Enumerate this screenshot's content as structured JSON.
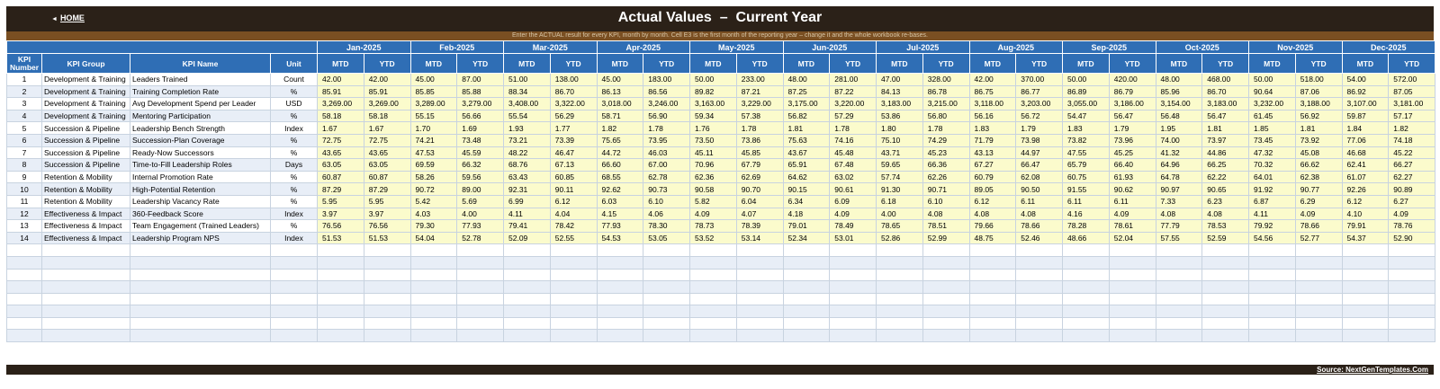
{
  "nav": {
    "home_arrow": "◄",
    "home_label": "HOME"
  },
  "title": "Actual Values  –  Current Year",
  "instruction": "Enter the ACTUAL result for every KPI, month by month. Cell E3 is the first month of the reporting year – change it and the whole workbook re-bases.",
  "table": {
    "headers": {
      "kpi_number": "KPI Number",
      "kpi_group": "KPI Group",
      "kpi_name": "KPI Name",
      "unit": "Unit",
      "mtd": "MTD",
      "ytd": "YTD"
    },
    "months": [
      "Jan-2025",
      "Feb-2025",
      "Mar-2025",
      "Apr-2025",
      "May-2025",
      "Jun-2025",
      "Jul-2025",
      "Aug-2025",
      "Sep-2025",
      "Oct-2025",
      "Nov-2025",
      "Dec-2025"
    ],
    "rows": [
      {
        "num": "1",
        "group": "Development & Training",
        "name": "Leaders Trained",
        "unit": "Count",
        "values": [
          "42.00",
          "42.00",
          "45.00",
          "87.00",
          "51.00",
          "138.00",
          "45.00",
          "183.00",
          "50.00",
          "233.00",
          "48.00",
          "281.00",
          "47.00",
          "328.00",
          "42.00",
          "370.00",
          "50.00",
          "420.00",
          "48.00",
          "468.00",
          "50.00",
          "518.00",
          "54.00",
          "572.00"
        ]
      },
      {
        "num": "2",
        "group": "Development & Training",
        "name": "Training Completion Rate",
        "unit": "%",
        "values": [
          "85.91",
          "85.91",
          "85.85",
          "85.88",
          "88.34",
          "86.70",
          "86.13",
          "86.56",
          "89.82",
          "87.21",
          "87.25",
          "87.22",
          "84.13",
          "86.78",
          "86.75",
          "86.77",
          "86.89",
          "86.79",
          "85.96",
          "86.70",
          "90.64",
          "87.06",
          "86.92",
          "87.05"
        ]
      },
      {
        "num": "3",
        "group": "Development & Training",
        "name": "Avg Development Spend per Leader",
        "unit": "USD",
        "values": [
          "3,269.00",
          "3,269.00",
          "3,289.00",
          "3,279.00",
          "3,408.00",
          "3,322.00",
          "3,018.00",
          "3,246.00",
          "3,163.00",
          "3,229.00",
          "3,175.00",
          "3,220.00",
          "3,183.00",
          "3,215.00",
          "3,118.00",
          "3,203.00",
          "3,055.00",
          "3,186.00",
          "3,154.00",
          "3,183.00",
          "3,232.00",
          "3,188.00",
          "3,107.00",
          "3,181.00"
        ]
      },
      {
        "num": "4",
        "group": "Development & Training",
        "name": "Mentoring Participation",
        "unit": "%",
        "values": [
          "58.18",
          "58.18",
          "55.15",
          "56.66",
          "55.54",
          "56.29",
          "58.71",
          "56.90",
          "59.34",
          "57.38",
          "56.82",
          "57.29",
          "53.86",
          "56.80",
          "56.16",
          "56.72",
          "54.47",
          "56.47",
          "56.48",
          "56.47",
          "61.45",
          "56.92",
          "59.87",
          "57.17"
        ]
      },
      {
        "num": "5",
        "group": "Succession & Pipeline",
        "name": "Leadership Bench Strength",
        "unit": "Index",
        "values": [
          "1.67",
          "1.67",
          "1.70",
          "1.69",
          "1.93",
          "1.77",
          "1.82",
          "1.78",
          "1.76",
          "1.78",
          "1.81",
          "1.78",
          "1.80",
          "1.78",
          "1.83",
          "1.79",
          "1.83",
          "1.79",
          "1.95",
          "1.81",
          "1.85",
          "1.81",
          "1.84",
          "1.82"
        ]
      },
      {
        "num": "6",
        "group": "Succession & Pipeline",
        "name": "Succession-Plan Coverage",
        "unit": "%",
        "values": [
          "72.75",
          "72.75",
          "74.21",
          "73.48",
          "73.21",
          "73.39",
          "75.65",
          "73.95",
          "73.50",
          "73.86",
          "75.63",
          "74.16",
          "75.10",
          "74.29",
          "71.79",
          "73.98",
          "73.82",
          "73.96",
          "74.00",
          "73.97",
          "73.45",
          "73.92",
          "77.06",
          "74.18"
        ]
      },
      {
        "num": "7",
        "group": "Succession & Pipeline",
        "name": "Ready-Now Successors",
        "unit": "%",
        "values": [
          "43.65",
          "43.65",
          "47.53",
          "45.59",
          "48.22",
          "46.47",
          "44.72",
          "46.03",
          "45.11",
          "45.85",
          "43.67",
          "45.48",
          "43.71",
          "45.23",
          "43.13",
          "44.97",
          "47.55",
          "45.25",
          "41.32",
          "44.86",
          "47.32",
          "45.08",
          "46.68",
          "45.22"
        ]
      },
      {
        "num": "8",
        "group": "Succession & Pipeline",
        "name": "Time-to-Fill Leadership Roles",
        "unit": "Days",
        "values": [
          "63.05",
          "63.05",
          "69.59",
          "66.32",
          "68.76",
          "67.13",
          "66.60",
          "67.00",
          "70.96",
          "67.79",
          "65.91",
          "67.48",
          "59.65",
          "66.36",
          "67.27",
          "66.47",
          "65.79",
          "66.40",
          "64.96",
          "66.25",
          "70.32",
          "66.62",
          "62.41",
          "66.27"
        ]
      },
      {
        "num": "9",
        "group": "Retention & Mobility",
        "name": "Internal Promotion Rate",
        "unit": "%",
        "values": [
          "60.87",
          "60.87",
          "58.26",
          "59.56",
          "63.43",
          "60.85",
          "68.55",
          "62.78",
          "62.36",
          "62.69",
          "64.62",
          "63.02",
          "57.74",
          "62.26",
          "60.79",
          "62.08",
          "60.75",
          "61.93",
          "64.78",
          "62.22",
          "64.01",
          "62.38",
          "61.07",
          "62.27"
        ]
      },
      {
        "num": "10",
        "group": "Retention & Mobility",
        "name": "High-Potential Retention",
        "unit": "%",
        "values": [
          "87.29",
          "87.29",
          "90.72",
          "89.00",
          "92.31",
          "90.11",
          "92.62",
          "90.73",
          "90.58",
          "90.70",
          "90.15",
          "90.61",
          "91.30",
          "90.71",
          "89.05",
          "90.50",
          "91.55",
          "90.62",
          "90.97",
          "90.65",
          "91.92",
          "90.77",
          "92.26",
          "90.89"
        ]
      },
      {
        "num": "11",
        "group": "Retention & Mobility",
        "name": "Leadership Vacancy Rate",
        "unit": "%",
        "values": [
          "5.95",
          "5.95",
          "5.42",
          "5.69",
          "6.99",
          "6.12",
          "6.03",
          "6.10",
          "5.82",
          "6.04",
          "6.34",
          "6.09",
          "6.18",
          "6.10",
          "6.12",
          "6.11",
          "6.11",
          "6.11",
          "7.33",
          "6.23",
          "6.87",
          "6.29",
          "6.12",
          "6.27"
        ]
      },
      {
        "num": "12",
        "group": "Effectiveness & Impact",
        "name": "360-Feedback Score",
        "unit": "Index",
        "values": [
          "3.97",
          "3.97",
          "4.03",
          "4.00",
          "4.11",
          "4.04",
          "4.15",
          "4.06",
          "4.09",
          "4.07",
          "4.18",
          "4.09",
          "4.00",
          "4.08",
          "4.08",
          "4.08",
          "4.16",
          "4.09",
          "4.08",
          "4.08",
          "4.11",
          "4.09",
          "4.10",
          "4.09"
        ]
      },
      {
        "num": "13",
        "group": "Effectiveness & Impact",
        "name": "Team Engagement (Trained Leaders)",
        "unit": "%",
        "values": [
          "76.56",
          "76.56",
          "79.30",
          "77.93",
          "79.41",
          "78.42",
          "77.93",
          "78.30",
          "78.73",
          "78.39",
          "79.01",
          "78.49",
          "78.65",
          "78.51",
          "79.66",
          "78.66",
          "78.28",
          "78.61",
          "77.79",
          "78.53",
          "79.92",
          "78.66",
          "79.91",
          "78.76"
        ]
      },
      {
        "num": "14",
        "group": "Effectiveness & Impact",
        "name": "Leadership Program NPS",
        "unit": "Index",
        "values": [
          "51.53",
          "51.53",
          "54.04",
          "52.78",
          "52.09",
          "52.55",
          "54.53",
          "53.05",
          "53.52",
          "53.14",
          "52.34",
          "53.01",
          "52.86",
          "52.99",
          "48.75",
          "52.46",
          "48.66",
          "52.04",
          "57.55",
          "52.59",
          "54.56",
          "52.77",
          "54.37",
          "52.90"
        ]
      }
    ],
    "empty_rows": 8
  },
  "footer": {
    "source": "Source: NextGenTemplates.Com"
  },
  "colors": {
    "title_bg": "#2b2118",
    "instruction_bg": "#7a4f22",
    "header_bg": "#2f6eb5",
    "value_bg": "#fbfbcc",
    "alt_row_bg": "#e8eef7"
  }
}
